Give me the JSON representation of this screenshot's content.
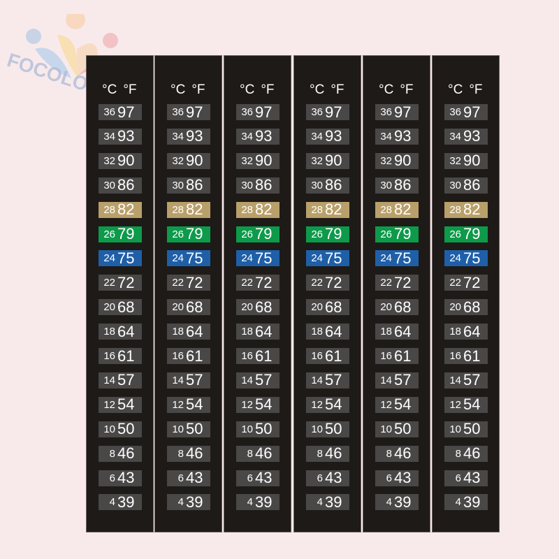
{
  "watermark": {
    "text": "FOCOLOR"
  },
  "strip_count": 6,
  "header": {
    "celsius": "°C",
    "fahrenheit": "°F"
  },
  "colors": {
    "background": "#f8eaeb",
    "strip": "#1e1a17",
    "inactive": "#4a4747",
    "gold": "#b9a06a",
    "green": "#0d9a4a",
    "blue": "#1f5fa8"
  },
  "rows": [
    {
      "c": "36",
      "f": "97",
      "color": "inactive"
    },
    {
      "c": "34",
      "f": "93",
      "color": "inactive"
    },
    {
      "c": "32",
      "f": "90",
      "color": "inactive"
    },
    {
      "c": "30",
      "f": "86",
      "color": "inactive"
    },
    {
      "c": "28",
      "f": "82",
      "color": "gold"
    },
    {
      "c": "26",
      "f": "79",
      "color": "green"
    },
    {
      "c": "24",
      "f": "75",
      "color": "blue"
    },
    {
      "c": "22",
      "f": "72",
      "color": "inactive"
    },
    {
      "c": "20",
      "f": "68",
      "color": "inactive"
    },
    {
      "c": "18",
      "f": "64",
      "color": "inactive"
    },
    {
      "c": "16",
      "f": "61",
      "color": "inactive"
    },
    {
      "c": "14",
      "f": "57",
      "color": "inactive"
    },
    {
      "c": "12",
      "f": "54",
      "color": "inactive"
    },
    {
      "c": "10",
      "f": "50",
      "color": "inactive"
    },
    {
      "c": "8",
      "f": "46",
      "color": "inactive"
    },
    {
      "c": "6",
      "f": "43",
      "color": "inactive"
    },
    {
      "c": "4",
      "f": "39",
      "color": "inactive"
    }
  ]
}
